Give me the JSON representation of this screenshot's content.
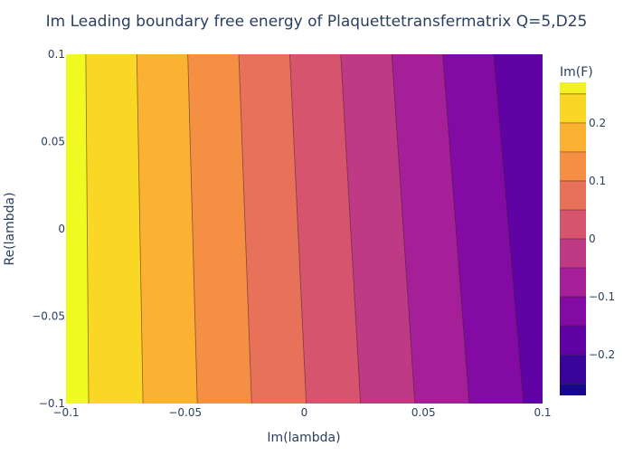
{
  "chart_data": {
    "type": "contour",
    "title": "Im Leading boundary free energy of Plaquettetransfermatrix Q=5,D25",
    "xlabel": "Im(lambda)",
    "ylabel": "Re(lambda)",
    "xlim": [
      -0.1,
      0.1
    ],
    "ylim": [
      -0.1,
      0.1
    ],
    "x_ticks": [
      -0.1,
      -0.05,
      0,
      0.05,
      0.1
    ],
    "x_tick_labels": [
      "−0.1",
      "−0.05",
      "0",
      "0.05",
      "0.1"
    ],
    "y_ticks": [
      -0.1,
      -0.05,
      0,
      0.05,
      0.1
    ],
    "y_tick_labels": [
      "−0.1",
      "−0.05",
      "0",
      "0.05",
      "0.1"
    ],
    "colorbar": {
      "title": "Im(F)",
      "ticks": [
        -0.2,
        -0.1,
        0,
        0.1,
        0.2
      ],
      "tick_labels": [
        "−0.2",
        "−0.1",
        "0",
        "0.1",
        "0.2"
      ],
      "zlim": [
        -0.27,
        0.27
      ]
    },
    "contour_step": 0.05,
    "contour_start": -0.25,
    "contour_end": 0.25,
    "contour_lines_bottom_x": [
      -0.0905,
      -0.0677,
      -0.0449,
      -0.0221,
      0.0008,
      0.0236,
      0.0464,
      0.0692,
      0.092
    ],
    "contour_lines_top_x": [
      -0.0917,
      -0.0703,
      -0.0489,
      -0.0275,
      -0.0061,
      0.0153,
      0.0367,
      0.0581,
      0.0795
    ],
    "colorscale": [
      "#0d0887",
      "#46039f",
      "#7201a8",
      "#9c179e",
      "#bd3786",
      "#d8576b",
      "#ed7953",
      "#fb9f3a",
      "#fdca26",
      "#f0f921"
    ],
    "grid": false
  }
}
